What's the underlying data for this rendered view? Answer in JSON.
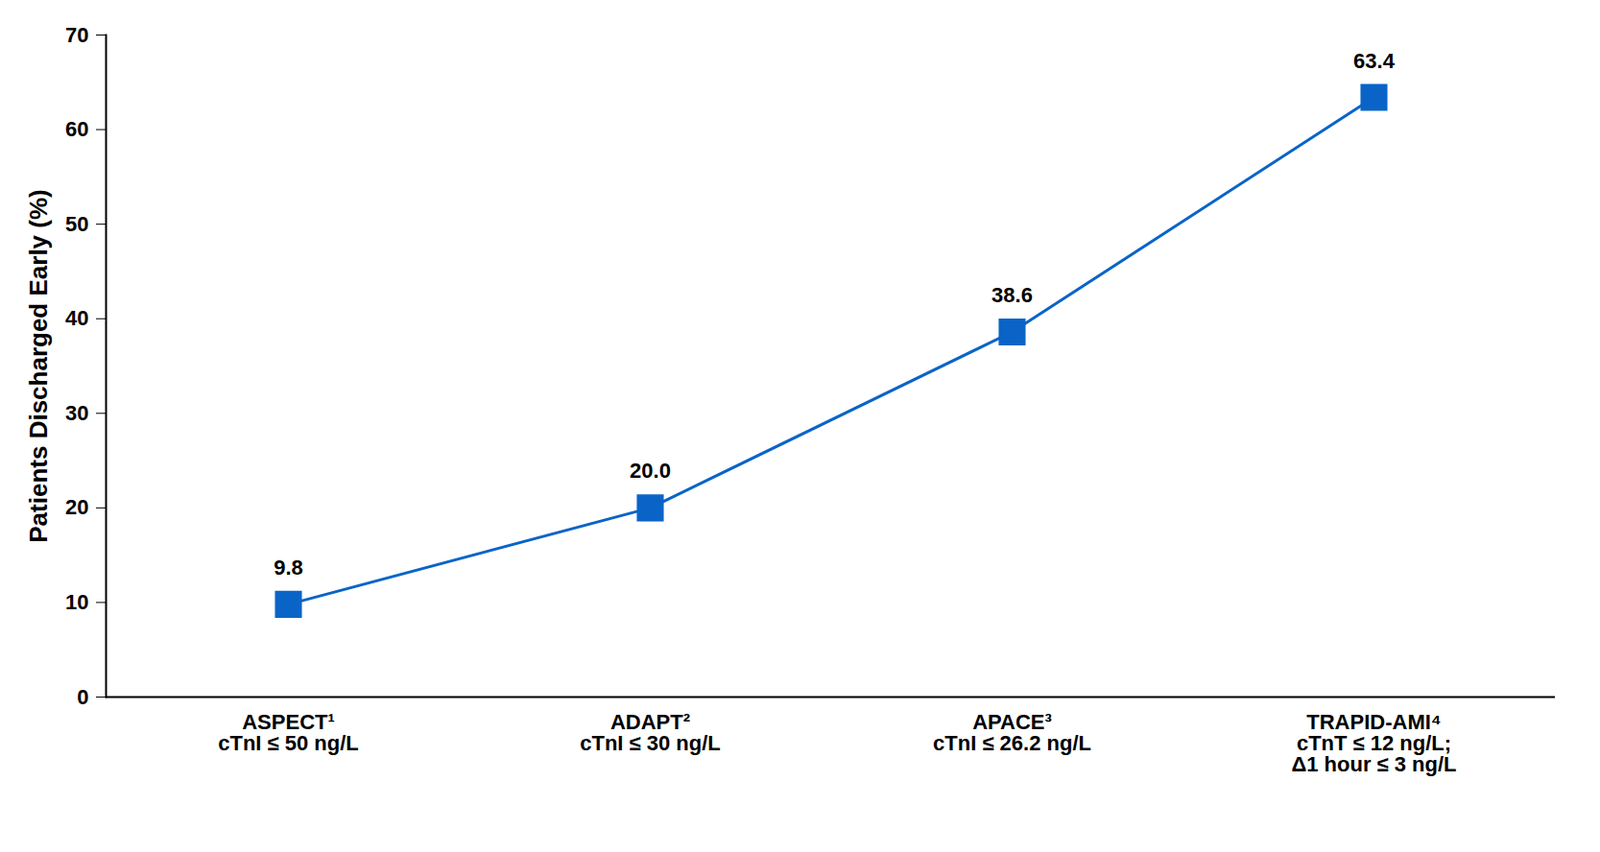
{
  "chart_data": {
    "type": "line",
    "categories": [
      "ASPECT¹\ncTnI ≤ 50 ng/L",
      "ADAPT²\ncTnI ≤ 30 ng/L",
      "APACE³\ncTnI ≤ 26.2 ng/L",
      "TRAPID-AMI⁴\ncTnT ≤ 12 ng/L;\nΔ1 hour ≤ 3 ng/L"
    ],
    "values": [
      9.8,
      20.0,
      38.6,
      63.4
    ],
    "value_labels": [
      "9.8",
      "20.0",
      "38.6",
      "63.4"
    ],
    "y_label": "Patients Discharged Early (%)",
    "ylim": [
      0,
      70
    ],
    "yticks": [
      0,
      10,
      20,
      30,
      40,
      50,
      60,
      70
    ],
    "color": "#0a64c8",
    "marker": "square",
    "grid": false,
    "data_labels": true
  }
}
